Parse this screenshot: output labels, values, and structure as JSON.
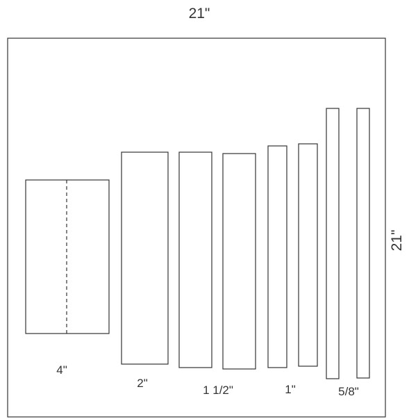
{
  "dimensions": {
    "width_label": "21\"",
    "height_label": "21\""
  },
  "pieces": {
    "p4": {
      "label": "4\""
    },
    "p2": {
      "label": "2\""
    },
    "p1_5": {
      "label": "1 1/2\""
    },
    "p1": {
      "label": "1\""
    },
    "p5_8": {
      "label": "5/8\""
    }
  }
}
